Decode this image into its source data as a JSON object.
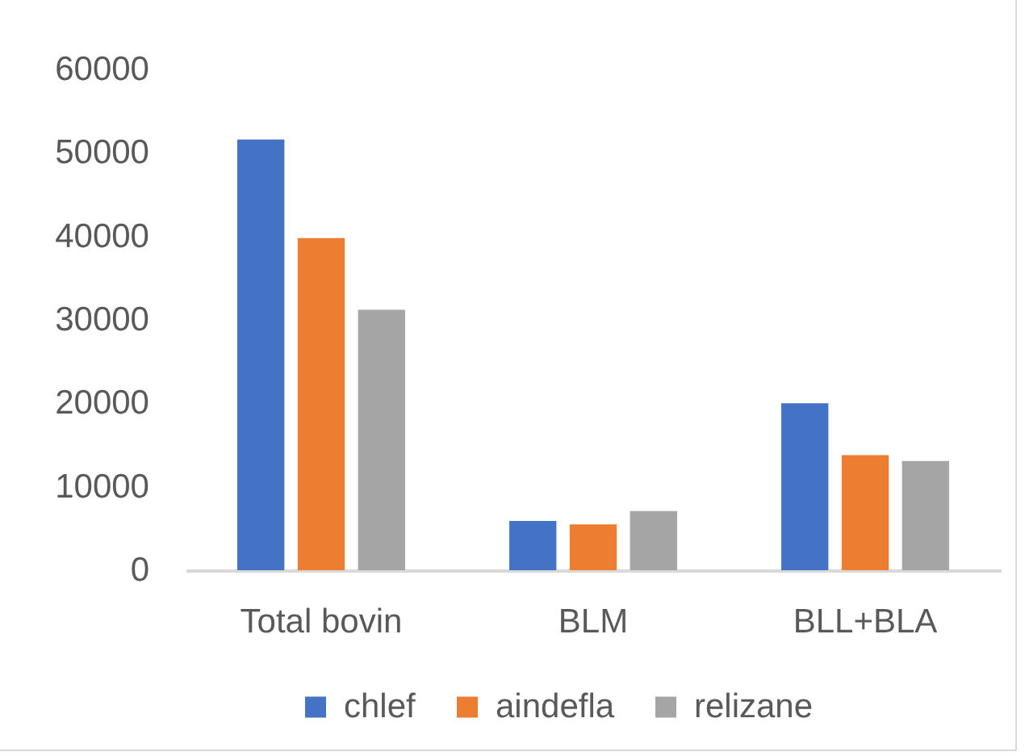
{
  "chart_data": {
    "type": "bar",
    "categories": [
      "Total bovin",
      "BLM",
      "BLL+BLA"
    ],
    "series": [
      {
        "name": "chlef",
        "color": "#4472c4",
        "values": [
          51600,
          5900,
          20000
        ]
      },
      {
        "name": "aindefla",
        "color": "#ed7d31",
        "values": [
          39800,
          5500,
          13800
        ]
      },
      {
        "name": "relizane",
        "color": "#a5a5a5",
        "values": [
          31200,
          7100,
          13100
        ]
      }
    ],
    "ylim": [
      0,
      60000
    ],
    "yticks": [
      0,
      10000,
      20000,
      30000,
      40000,
      50000,
      60000
    ],
    "legend": "bottom"
  }
}
